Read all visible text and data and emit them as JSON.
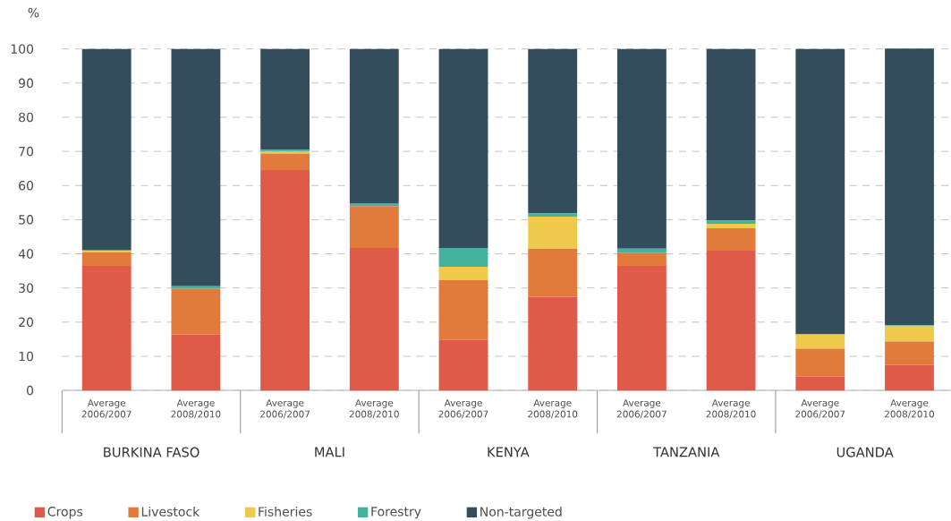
{
  "chart_data": {
    "type": "bar",
    "stacked": true,
    "ylabel": "%",
    "categories": [
      "Average 2006/2007",
      "Average 2008/2010",
      "Average 2006/2007",
      "Average 2008/2010",
      "Average 2006/2007",
      "Average 2008/2010",
      "Average 2006/2007",
      "Average 2008/2010",
      "Average 2006/2007",
      "Average 2008/2010"
    ],
    "series": [
      {
        "name": "Crops",
        "color": "#df5a49",
        "values": [
          36.5,
          16.4,
          64.5,
          41.7,
          14.8,
          27.4,
          36.5,
          40.9,
          4.1,
          7.5
        ]
      },
      {
        "name": "Livestock",
        "color": "#e17a3b",
        "values": [
          4.0,
          13.3,
          4.9,
          12.3,
          17.5,
          14.1,
          3.7,
          6.6,
          8.1,
          6.8
        ]
      },
      {
        "name": "Fisheries",
        "color": "#efc94c",
        "values": [
          0.4,
          0,
          0.5,
          0,
          3.9,
          9.4,
          0,
          1.3,
          4.2,
          4.5
        ]
      },
      {
        "name": "Forestry",
        "color": "#45b29d",
        "values": [
          0.3,
          0.8,
          0.6,
          0.8,
          5.5,
          1.0,
          1.3,
          1.0,
          0,
          0.3
        ]
      },
      {
        "name": "Non-targeted",
        "color": "#334d5c",
        "values": [
          58.8,
          69.5,
          29.5,
          45.2,
          58.3,
          48.1,
          58.5,
          50.2,
          83.6,
          81.0
        ]
      }
    ],
    "ylim": [
      0,
      100
    ],
    "yticks": [
      0,
      10,
      20,
      30,
      40,
      50,
      60,
      70,
      80,
      90,
      100
    ],
    "grid": "y",
    "legend": "bottom",
    "annotations": [
      "BURKINA FASO",
      "MALI",
      "KENYA",
      "TANZANIA",
      "UGANDA"
    ]
  }
}
